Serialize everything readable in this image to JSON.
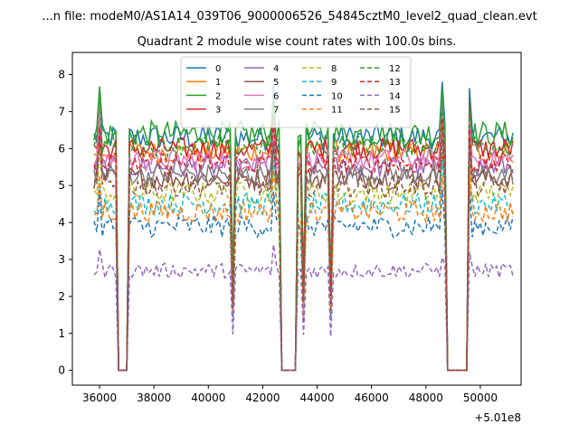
{
  "chart_data": {
    "type": "line",
    "suptitle": "...n file: modeM0/AS1A14_039T06_9000006526_54845cztM0_level2_quad_clean.evt",
    "title": "Quadrant 2 module wise count rates with 100.0s bins.",
    "xlabel": "",
    "ylabel": "",
    "x_offset_label": "+5.01e8",
    "xlim": [
      35000,
      51500
    ],
    "ylim": [
      -0.4,
      8.6
    ],
    "x_ticks": [
      36000,
      38000,
      40000,
      42000,
      44000,
      46000,
      48000,
      50000
    ],
    "x_tick_labels": [
      "36000",
      "38000",
      "40000",
      "42000",
      "44000",
      "46000",
      "48000",
      "50000"
    ],
    "y_ticks": [
      0,
      1,
      2,
      3,
      4,
      5,
      6,
      7,
      8
    ],
    "y_tick_labels": [
      "0",
      "1",
      "2",
      "3",
      "4",
      "5",
      "6",
      "7",
      "8"
    ],
    "grid": false,
    "legend_position": "top-center",
    "legend_columns": 4,
    "series_meta": [
      {
        "name": "0",
        "color": "#1f77b4",
        "dash": "solid",
        "base": 6.3,
        "amp": 0.35
      },
      {
        "name": "1",
        "color": "#ff7f0e",
        "dash": "solid",
        "base": 5.9,
        "amp": 0.3
      },
      {
        "name": "2",
        "color": "#2ca02c",
        "dash": "solid",
        "base": 6.4,
        "amp": 0.35
      },
      {
        "name": "3",
        "color": "#d62728",
        "dash": "solid",
        "base": 6.0,
        "amp": 0.3
      },
      {
        "name": "4",
        "color": "#9467bd",
        "dash": "solid",
        "base": 5.5,
        "amp": 0.3
      },
      {
        "name": "5",
        "color": "#8c564b",
        "dash": "solid",
        "base": 5.2,
        "amp": 0.3
      },
      {
        "name": "6",
        "color": "#e377c2",
        "dash": "solid",
        "base": 5.7,
        "amp": 0.3
      },
      {
        "name": "7",
        "color": "#7f7f7f",
        "dash": "solid",
        "base": 5.3,
        "amp": 0.3
      },
      {
        "name": "8",
        "color": "#bcbd22",
        "dash": "dashed",
        "base": 4.8,
        "amp": 0.3
      },
      {
        "name": "9",
        "color": "#17becf",
        "dash": "dashed",
        "base": 4.5,
        "amp": 0.3
      },
      {
        "name": "10",
        "color": "#1f77b4",
        "dash": "dashed",
        "base": 3.9,
        "amp": 0.3
      },
      {
        "name": "11",
        "color": "#ff7f0e",
        "dash": "dashed",
        "base": 4.3,
        "amp": 0.3
      },
      {
        "name": "12",
        "color": "#2ca02c",
        "dash": "dashed",
        "base": 6.1,
        "amp": 0.3
      },
      {
        "name": "13",
        "color": "#d62728",
        "dash": "dashed",
        "base": 5.6,
        "amp": 0.3
      },
      {
        "name": "14",
        "color": "#9467bd",
        "dash": "dashed",
        "base": 2.7,
        "amp": 0.2
      },
      {
        "name": "15",
        "color": "#8c564b",
        "dash": "dashed",
        "base": 5.0,
        "amp": 0.3
      }
    ],
    "time_start": 35800,
    "time_end": 51200,
    "bin_size": 100,
    "zero_intervals": [
      [
        36700,
        37000
      ],
      [
        42700,
        43200
      ],
      [
        48800,
        49500
      ]
    ],
    "dip_times": [
      40900,
      43500,
      44500
    ],
    "peak_times": [
      36000,
      37000,
      42400,
      48600,
      49600
    ]
  }
}
